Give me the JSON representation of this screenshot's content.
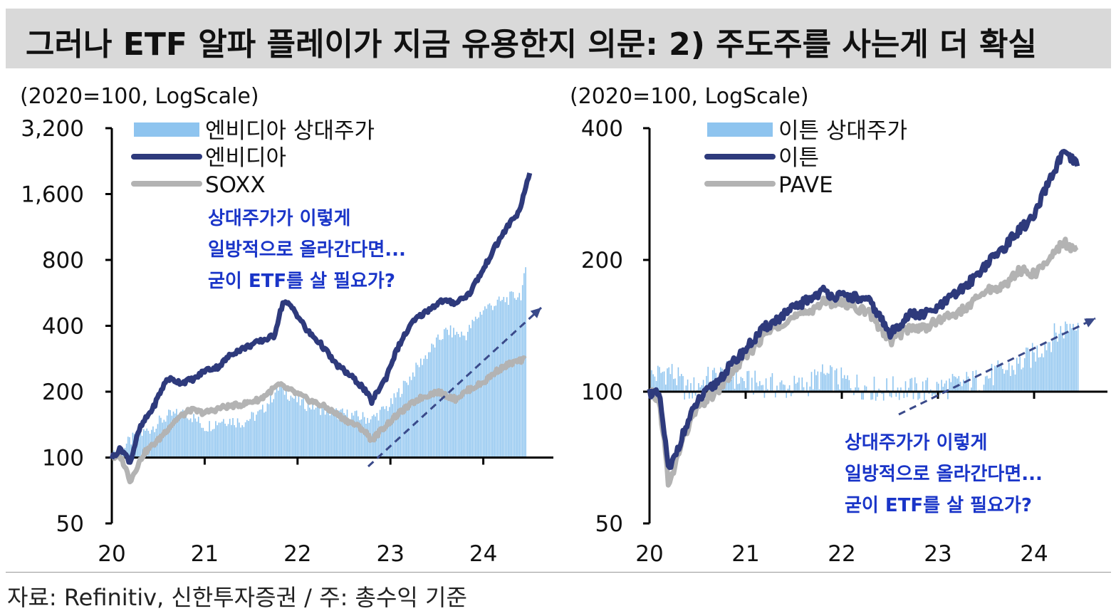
{
  "title": "그러나 ETF 알파 플레이가 지금 유용한지 의문: 2) 주도주를 사는게 더 확실",
  "footer": "자료: Refinitiv, 신한투자증권 / 주: 총수익 기준",
  "colors": {
    "bars": "#8ec4ef",
    "primary": "#2e3a7c",
    "benchmark": "#b3b3b3",
    "annotation": "#1a35c8",
    "arrow": "#3a4a8a"
  },
  "chart_data": [
    {
      "type": "line",
      "ylabel": "(2020=100, LogScale)",
      "yscale": "log",
      "ylim": [
        50,
        3200
      ],
      "yticks": [
        50,
        100,
        200,
        400,
        800,
        1600,
        3200
      ],
      "ytick_labels": [
        "50",
        "100",
        "200",
        "400",
        "800",
        "1,600",
        "3,200"
      ],
      "xlim": [
        2020,
        2024.6
      ],
      "xticks": [
        2020,
        2021,
        2022,
        2023,
        2024
      ],
      "xtick_labels": [
        "20",
        "21",
        "22",
        "23",
        "24"
      ],
      "legend_position": "top-left",
      "annotation": [
        "상대주가가 이렇게",
        "일방적으로 올라간다면...",
        "굳이 ETF를 살 필요가?"
      ],
      "series": [
        {
          "name": "엔비디아 상대주가",
          "style": "bar",
          "x": [
            2020.0,
            2020.2,
            2020.4,
            2020.6,
            2020.8,
            2021.0,
            2021.2,
            2021.4,
            2021.6,
            2021.8,
            2022.0,
            2022.2,
            2022.4,
            2022.6,
            2022.8,
            2023.0,
            2023.2,
            2023.4,
            2023.6,
            2023.8,
            2024.0,
            2024.2,
            2024.4,
            2024.45
          ],
          "y": [
            100,
            120,
            135,
            155,
            160,
            138,
            150,
            145,
            160,
            210,
            180,
            170,
            160,
            155,
            150,
            175,
            230,
            300,
            380,
            360,
            480,
            520,
            560,
            700
          ]
        },
        {
          "name": "엔비디아",
          "style": "line",
          "x": [
            2020.0,
            2020.1,
            2020.2,
            2020.3,
            2020.45,
            2020.6,
            2020.75,
            2020.9,
            2021.0,
            2021.15,
            2021.3,
            2021.45,
            2021.6,
            2021.75,
            2021.85,
            2021.95,
            2022.1,
            2022.25,
            2022.4,
            2022.55,
            2022.7,
            2022.8,
            2022.95,
            2023.1,
            2023.25,
            2023.4,
            2023.55,
            2023.7,
            2023.85,
            2024.0,
            2024.15,
            2024.3,
            2024.4,
            2024.5
          ],
          "y": [
            100,
            110,
            95,
            135,
            170,
            230,
            220,
            230,
            250,
            260,
            300,
            320,
            340,
            360,
            520,
            480,
            380,
            330,
            270,
            240,
            210,
            180,
            230,
            330,
            420,
            470,
            520,
            510,
            560,
            720,
            950,
            1200,
            1350,
            2000
          ]
        },
        {
          "name": "SOXX",
          "style": "line",
          "x": [
            2020.0,
            2020.1,
            2020.2,
            2020.35,
            2020.5,
            2020.7,
            2020.85,
            2021.0,
            2021.2,
            2021.4,
            2021.6,
            2021.8,
            2021.95,
            2022.1,
            2022.3,
            2022.5,
            2022.7,
            2022.8,
            2022.95,
            2023.1,
            2023.3,
            2023.5,
            2023.7,
            2023.85,
            2024.0,
            2024.15,
            2024.3,
            2024.45
          ],
          "y": [
            100,
            100,
            78,
            105,
            120,
            150,
            165,
            160,
            170,
            175,
            185,
            215,
            200,
            185,
            170,
            150,
            135,
            120,
            140,
            160,
            185,
            200,
            185,
            205,
            220,
            250,
            270,
            280
          ]
        }
      ]
    },
    {
      "type": "line",
      "ylabel": "(2020=100, LogScale)",
      "yscale": "log",
      "ylim": [
        50,
        400
      ],
      "yticks": [
        50,
        100,
        200,
        400
      ],
      "ytick_labels": [
        "50",
        "100",
        "200",
        "400"
      ],
      "xlim": [
        2020,
        2024.6
      ],
      "xticks": [
        2020,
        2021,
        2022,
        2023,
        2024
      ],
      "xtick_labels": [
        "20",
        "21",
        "22",
        "23",
        "24"
      ],
      "legend_position": "top-left",
      "annotation": [
        "상대주가가 이렇게",
        "일방적으로 올라간다면...",
        "굳이 ETF를 살 필요가?"
      ],
      "series": [
        {
          "name": "이튼 상대주가",
          "style": "bar",
          "x": [
            2020.0,
            2020.2,
            2020.4,
            2020.6,
            2020.8,
            2021.0,
            2021.2,
            2021.4,
            2021.6,
            2021.8,
            2022.0,
            2022.2,
            2022.4,
            2022.6,
            2022.8,
            2023.0,
            2023.2,
            2023.4,
            2023.6,
            2023.8,
            2024.0,
            2024.2,
            2024.4,
            2024.45
          ],
          "y": [
            108,
            112,
            100,
            107,
            110,
            105,
            104,
            102,
            103,
            109,
            106,
            103,
            101,
            102,
            101,
            102,
            104,
            106,
            110,
            114,
            122,
            134,
            144,
            148
          ]
        },
        {
          "name": "이튼",
          "style": "line",
          "x": [
            2020.0,
            2020.1,
            2020.2,
            2020.35,
            2020.5,
            2020.7,
            2020.85,
            2021.0,
            2021.2,
            2021.4,
            2021.6,
            2021.8,
            2021.95,
            2022.1,
            2022.3,
            2022.5,
            2022.7,
            2022.85,
            2023.0,
            2023.15,
            2023.3,
            2023.5,
            2023.7,
            2023.85,
            2024.0,
            2024.15,
            2024.3,
            2024.45
          ],
          "y": [
            100,
            98,
            65,
            80,
            95,
            105,
            115,
            125,
            140,
            150,
            160,
            170,
            165,
            165,
            160,
            135,
            150,
            150,
            155,
            165,
            175,
            195,
            215,
            235,
            250,
            300,
            350,
            330
          ]
        },
        {
          "name": "PAVE",
          "style": "line",
          "x": [
            2020.0,
            2020.1,
            2020.2,
            2020.35,
            2020.5,
            2020.7,
            2020.85,
            2021.0,
            2021.2,
            2021.4,
            2021.6,
            2021.8,
            2021.95,
            2022.1,
            2022.3,
            2022.5,
            2022.7,
            2022.85,
            2023.0,
            2023.15,
            2023.3,
            2023.5,
            2023.7,
            2023.85,
            2024.0,
            2024.15,
            2024.3,
            2024.45
          ],
          "y": [
            100,
            95,
            60,
            78,
            92,
            100,
            110,
            120,
            135,
            145,
            150,
            160,
            160,
            158,
            150,
            130,
            140,
            140,
            145,
            150,
            155,
            170,
            175,
            190,
            185,
            200,
            220,
            210
          ]
        }
      ]
    }
  ]
}
